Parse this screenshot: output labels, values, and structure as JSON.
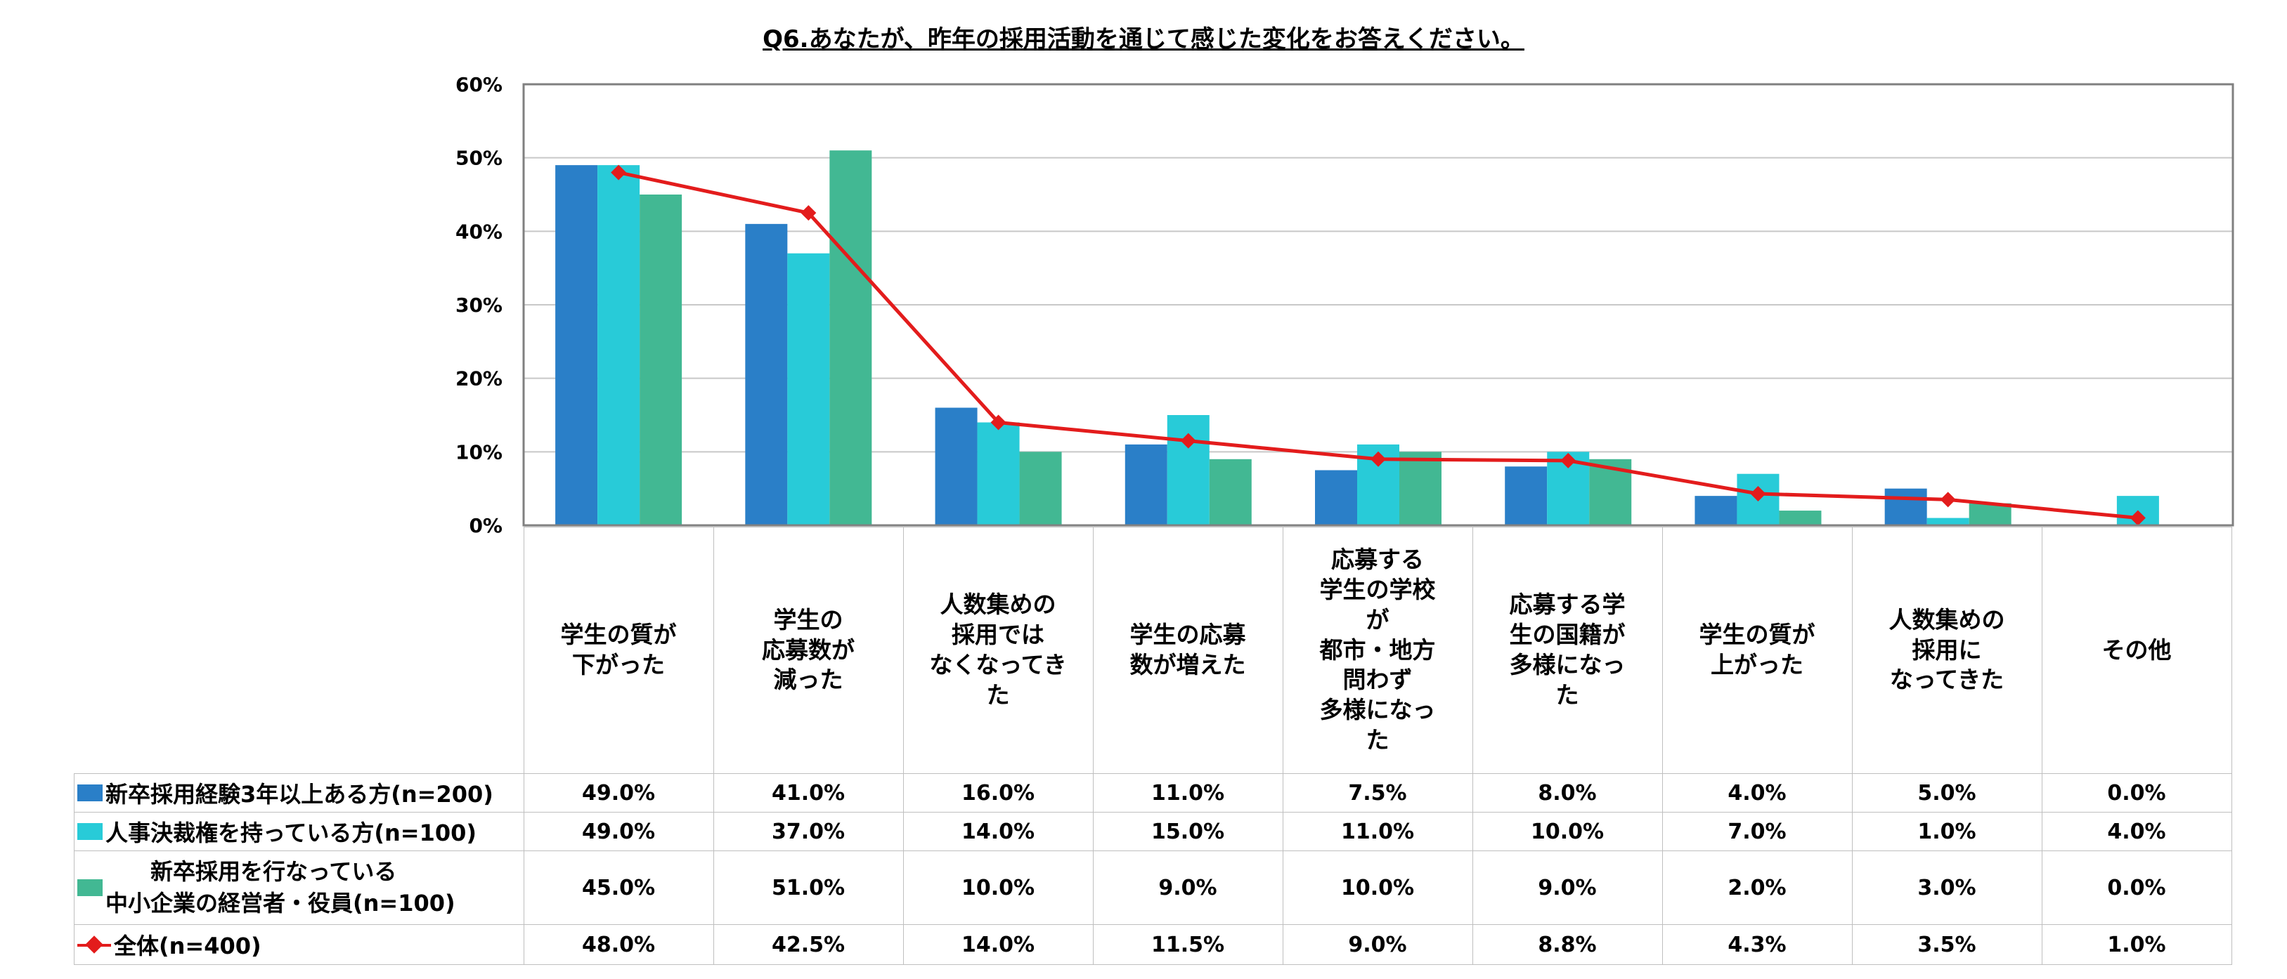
{
  "chart_data": {
    "type": "bar",
    "title": "Q6.あなたが、昨年の採用活動を通じて感じた変化をお答えください。",
    "ylim": [
      0,
      60
    ],
    "yticks": [
      "60%",
      "50%",
      "40%",
      "30%",
      "20%",
      "10%",
      "0%"
    ],
    "grid": true,
    "legend": "table-left",
    "categories": [
      "学生の質が\n下がった",
      "学生の\n応募数が\n減った",
      "人数集めの\n採用では\nなくなってき\nた",
      "学生の応募\n数が増えた",
      "応募する\n学生の学校\nが\n都市・地方\n問わず\n多様になっ\nた",
      "応募する学\n生の国籍が\n多様になっ\nた",
      "学生の質が\n上がった",
      "人数集めの\n採用に\nなってきた",
      "その他"
    ],
    "series": [
      {
        "name": "新卒採用経験3年以上ある方(n=200)",
        "kind": "bar",
        "color": "#2a7fc8",
        "values": [
          49.0,
          41.0,
          16.0,
          11.0,
          7.5,
          8.0,
          4.0,
          5.0,
          0.0
        ],
        "labels": [
          "49.0%",
          "41.0%",
          "16.0%",
          "11.0%",
          "7.5%",
          "8.0%",
          "4.0%",
          "5.0%",
          "0.0%"
        ]
      },
      {
        "name": "人事決裁権を持っている方(n=100)",
        "kind": "bar",
        "color": "#28cbd8",
        "values": [
          49.0,
          37.0,
          14.0,
          15.0,
          11.0,
          10.0,
          7.0,
          1.0,
          4.0
        ],
        "labels": [
          "49.0%",
          "37.0%",
          "14.0%",
          "15.0%",
          "11.0%",
          "10.0%",
          "7.0%",
          "1.0%",
          "4.0%"
        ]
      },
      {
        "name": "　　新卒採用を行なっている\n中小企業の経営者・役員(n=100)",
        "kind": "bar",
        "color": "#42b893",
        "values": [
          45.0,
          51.0,
          10.0,
          9.0,
          10.0,
          9.0,
          2.0,
          3.0,
          0.0
        ],
        "labels": [
          "45.0%",
          "51.0%",
          "10.0%",
          "9.0%",
          "10.0%",
          "9.0%",
          "2.0%",
          "3.0%",
          "0.0%"
        ]
      },
      {
        "name": "全体(n=400)",
        "kind": "line",
        "color": "#e31c1c",
        "values": [
          48.0,
          42.5,
          14.0,
          11.5,
          9.0,
          8.8,
          4.3,
          3.5,
          1.0
        ],
        "labels": [
          "48.0%",
          "42.5%",
          "14.0%",
          "11.5%",
          "9.0%",
          "8.8%",
          "4.3%",
          "3.5%",
          "1.0%"
        ]
      }
    ]
  }
}
